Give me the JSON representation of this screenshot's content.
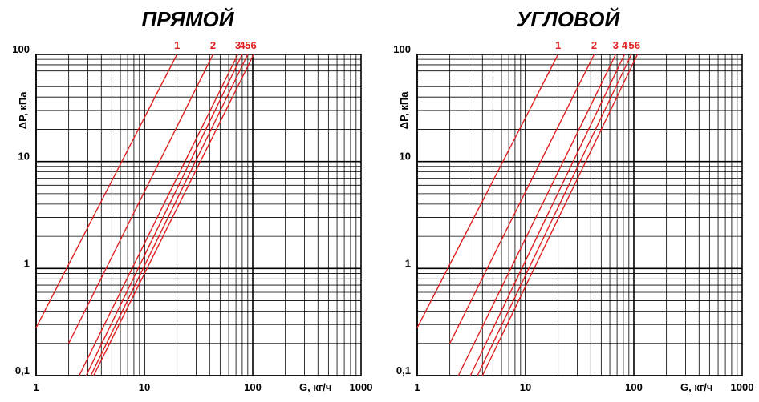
{
  "chart_data": [
    {
      "type": "line",
      "title": "ПРЯМОЙ",
      "xlabel": "G, кг/ч",
      "ylabel": "ΔP, кПа",
      "xscale": "log",
      "yscale": "log",
      "xlim": [
        1,
        1000
      ],
      "ylim": [
        0.1,
        100
      ],
      "x_ticks": [
        "1",
        "10",
        "100",
        "1000"
      ],
      "y_ticks": [
        "0,1",
        "1",
        "10",
        "100"
      ],
      "grid": true,
      "line_color": "#e02020",
      "series": [
        {
          "name": "1",
          "x": [
            1,
            20
          ],
          "y": [
            0.28,
            100
          ]
        },
        {
          "name": "2",
          "x": [
            2,
            43
          ],
          "y": [
            0.2,
            100
          ]
        },
        {
          "name": "3",
          "x": [
            2.5,
            73
          ],
          "y": [
            0.1,
            100
          ]
        },
        {
          "name": "4",
          "x": [
            2.9,
            80
          ],
          "y": [
            0.1,
            100
          ]
        },
        {
          "name": "5",
          "x": [
            3.2,
            90
          ],
          "y": [
            0.1,
            100
          ]
        },
        {
          "name": "6",
          "x": [
            3.4,
            102
          ],
          "y": [
            0.1,
            100
          ]
        }
      ]
    },
    {
      "type": "line",
      "title": "УГЛОВОЙ",
      "xlabel": "G, кг/ч",
      "ylabel": "ΔP, кПа",
      "xscale": "log",
      "yscale": "log",
      "xlim": [
        1,
        1000
      ],
      "ylim": [
        0.1,
        100
      ],
      "x_ticks": [
        "1",
        "10",
        "100",
        "1000"
      ],
      "y_ticks": [
        "0,1",
        "1",
        "10",
        "100"
      ],
      "grid": true,
      "line_color": "#e02020",
      "series": [
        {
          "name": "1",
          "x": [
            1,
            20
          ],
          "y": [
            0.28,
            100
          ]
        },
        {
          "name": "2",
          "x": [
            2,
            43
          ],
          "y": [
            0.2,
            100
          ]
        },
        {
          "name": "3",
          "x": [
            2.4,
            68
          ],
          "y": [
            0.1,
            100
          ]
        },
        {
          "name": "4",
          "x": [
            3.1,
            82
          ],
          "y": [
            0.1,
            100
          ]
        },
        {
          "name": "5",
          "x": [
            3.6,
            95
          ],
          "y": [
            0.1,
            100
          ]
        },
        {
          "name": "6",
          "x": [
            4.0,
            108
          ],
          "y": [
            0.1,
            100
          ]
        }
      ]
    }
  ]
}
